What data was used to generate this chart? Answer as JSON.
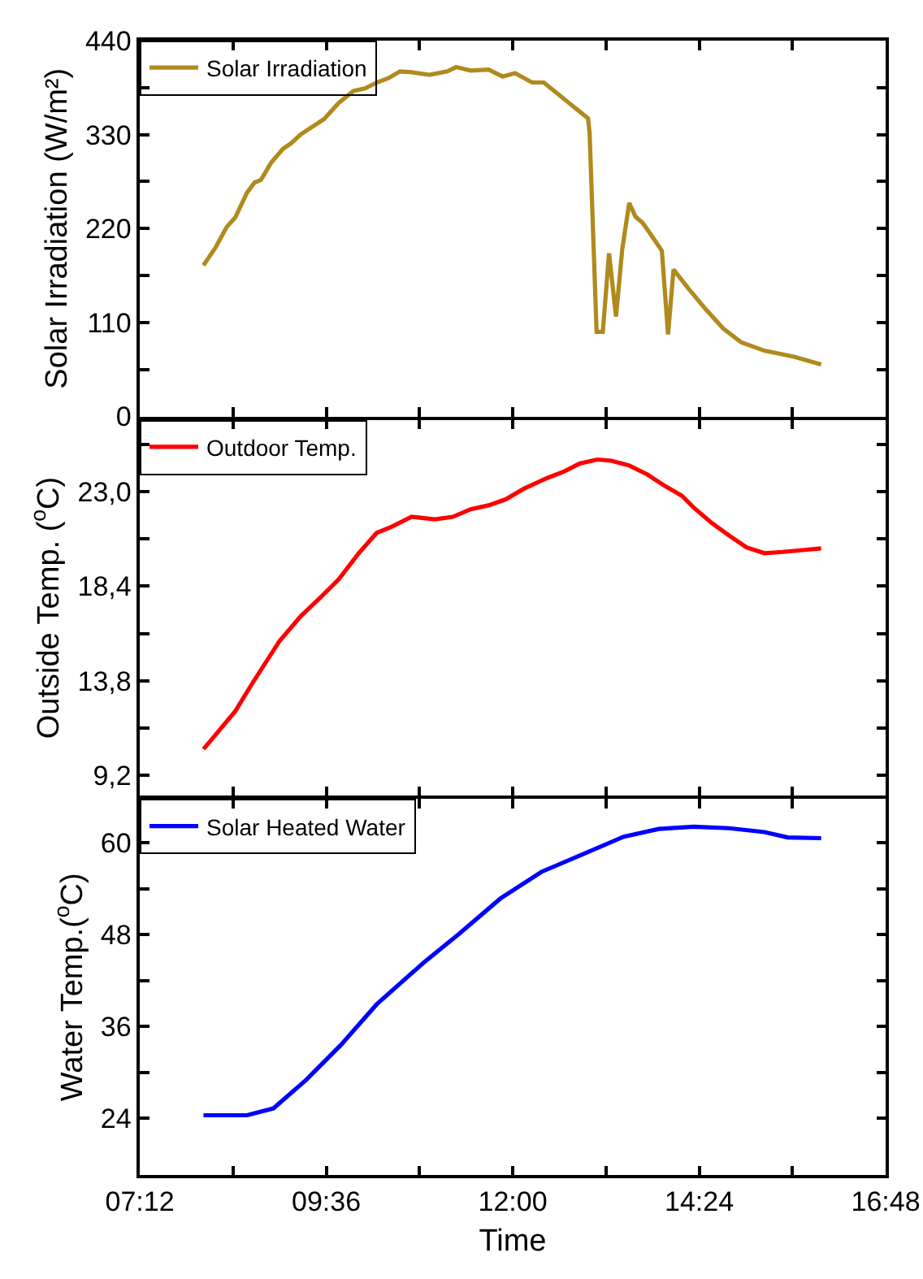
{
  "chart_data": [
    {
      "type": "line",
      "ylabel": "Solar Irradiation (W/m²)",
      "legend": "top left",
      "tick_labels": "y",
      "x": [
        8.02,
        8.17,
        8.32,
        8.43,
        8.58,
        8.68,
        8.76,
        8.89,
        9.04,
        9.15,
        9.27,
        9.42,
        9.57,
        9.76,
        9.95,
        10.1,
        10.25,
        10.4,
        10.55,
        10.7,
        10.93,
        11.16,
        11.27,
        11.46,
        11.69,
        11.87,
        12.03,
        12.25,
        12.4,
        12.59,
        12.78,
        12.97,
        12.99,
        13.08,
        13.16,
        13.24,
        13.33,
        13.41,
        13.5,
        13.58,
        13.67,
        13.77,
        13.92,
        14.0,
        14.07,
        14.26,
        14.48,
        14.71,
        14.94,
        15.24,
        15.62,
        15.97
      ],
      "series": [
        {
          "name": "Solar Irradiation",
          "color": "#b08a1e",
          "values": [
            177,
            197,
            222,
            233,
            262,
            274,
            277,
            297,
            313,
            320,
            330,
            339,
            348,
            367,
            381,
            384,
            391,
            396,
            404,
            403,
            400,
            404,
            409,
            405,
            406,
            398,
            402,
            391,
            391,
            377,
            363,
            349,
            332,
            99,
            99,
            191,
            117,
            196,
            250,
            234,
            227,
            214,
            194,
            96,
            172,
            150,
            126,
            103,
            87,
            77,
            70,
            61
          ]
        }
      ],
      "xlim": [
        7.2,
        16.8
      ],
      "xticks": [
        {
          "value": 7.2,
          "label": null
        },
        {
          "value": 8.4,
          "label": null
        },
        {
          "value": 9.6,
          "label": null
        },
        {
          "value": 10.8,
          "label": null
        },
        {
          "value": 12.0,
          "label": null
        },
        {
          "value": 13.2,
          "label": null
        },
        {
          "value": 14.4,
          "label": null
        },
        {
          "value": 15.6,
          "label": null
        },
        {
          "value": 16.8,
          "label": null
        }
      ],
      "ylim": [
        0,
        440
      ],
      "yticks": [
        0,
        {
          "value": 55,
          "label": null
        },
        110,
        {
          "value": 165,
          "label": null
        },
        220,
        {
          "value": 275,
          "label": null
        },
        330,
        {
          "value": 385,
          "label": null
        },
        440
      ]
    },
    {
      "type": "line",
      "ylabel": "Outside Temp. ($^{o}$C)",
      "legend": "top left",
      "tick_labels": "y",
      "x": [
        8.02,
        8.21,
        8.43,
        8.66,
        9.0,
        9.27,
        9.53,
        9.76,
        10.02,
        10.25,
        10.44,
        10.7,
        11.0,
        11.23,
        11.46,
        11.69,
        11.91,
        12.14,
        12.44,
        12.67,
        12.86,
        13.09,
        13.27,
        13.5,
        13.73,
        13.96,
        14.18,
        14.33,
        14.56,
        14.79,
        15.01,
        15.24,
        15.47,
        15.7,
        15.97
      ],
      "series": [
        {
          "name": "Outdoor Temp.",
          "color": "#ff0000",
          "values": [
            10.47,
            11.32,
            12.32,
            13.74,
            15.74,
            16.93,
            17.87,
            18.73,
            20.01,
            21.0,
            21.29,
            21.78,
            21.66,
            21.78,
            22.15,
            22.34,
            22.63,
            23.14,
            23.66,
            24.0,
            24.37,
            24.57,
            24.51,
            24.28,
            23.85,
            23.28,
            22.8,
            22.23,
            21.49,
            20.86,
            20.29,
            20.01,
            20.07,
            20.15,
            20.24
          ]
        }
      ],
      "xlim": [
        7.2,
        16.8
      ],
      "xticks": [
        {
          "value": 7.2,
          "label": null
        },
        {
          "value": 8.4,
          "label": null
        },
        {
          "value": 9.6,
          "label": null
        },
        {
          "value": 10.8,
          "label": null
        },
        {
          "value": 12.0,
          "label": null
        },
        {
          "value": 13.2,
          "label": null
        },
        {
          "value": 14.4,
          "label": null
        },
        {
          "value": 15.6,
          "label": null
        },
        {
          "value": 16.8,
          "label": null
        }
      ],
      "ylim": [
        8.2,
        26.5
      ],
      "yticks": [
        {
          "value": 9.2,
          "label": "9,2"
        },
        {
          "value": 11.5,
          "label": null
        },
        {
          "value": 13.8,
          "label": "13,8"
        },
        {
          "value": 16.1,
          "label": null
        },
        {
          "value": 18.4,
          "label": "18,4"
        },
        {
          "value": 20.7,
          "label": null
        },
        {
          "value": 23.0,
          "label": "23,0"
        },
        {
          "value": 25.3,
          "label": null
        }
      ]
    },
    {
      "type": "line",
      "ylabel": "Water Temp.($^{o}$C)",
      "xlabel": "Time",
      "legend": "top left",
      "x": [
        8.02,
        8.58,
        8.92,
        9.34,
        9.79,
        10.25,
        10.85,
        11.31,
        11.84,
        12.37,
        12.9,
        13.43,
        13.88,
        14.33,
        14.79,
        15.24,
        15.54,
        15.97
      ],
      "series": [
        {
          "name": "Solar Heated Water",
          "color": "#0000ff",
          "values": [
            24.4,
            24.4,
            25.3,
            29.0,
            33.6,
            38.9,
            44.3,
            48.1,
            52.7,
            56.2,
            58.5,
            60.8,
            61.8,
            62.1,
            61.9,
            61.4,
            60.7,
            60.6
          ]
        }
      ],
      "xlim": [
        7.2,
        16.8
      ],
      "xticks": [
        {
          "value": 7.2,
          "label": "07:12"
        },
        {
          "value": 8.4,
          "label": null
        },
        {
          "value": 9.6,
          "label": "09:36"
        },
        {
          "value": 10.8,
          "label": null
        },
        {
          "value": 12.0,
          "label": "12:00"
        },
        {
          "value": 13.2,
          "label": null
        },
        {
          "value": 14.4,
          "label": "14:24"
        },
        {
          "value": 15.6,
          "label": null
        },
        {
          "value": 16.8,
          "label": "16:48"
        }
      ],
      "ylim": [
        16.6,
        65.7
      ],
      "yticks": [
        24,
        {
          "value": 30,
          "label": null
        },
        36,
        {
          "value": 42,
          "label": null
        },
        48,
        {
          "value": 54,
          "label": null
        },
        60
      ]
    }
  ]
}
